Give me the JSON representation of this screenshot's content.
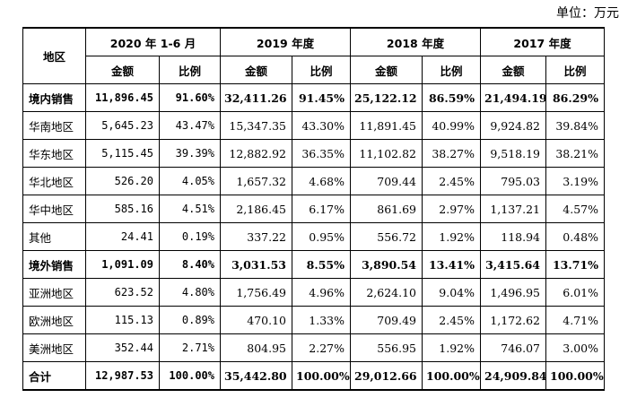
{
  "unit_label": "单位：万元",
  "header": {
    "region": "地区",
    "periods": [
      "2020 年 1-6 月",
      "2019 年度",
      "2018 年度",
      "2017 年度"
    ],
    "amount": "金额",
    "ratio": "比例"
  },
  "rows": [
    {
      "region": "境内销售",
      "bold": true,
      "vals": [
        "11,896.45",
        "91.60%",
        "32,411.26",
        "91.45%",
        "25,122.12",
        "86.59%",
        "21,494.19",
        "86.29%"
      ]
    },
    {
      "region": "华南地区",
      "bold": false,
      "vals": [
        "5,645.23",
        "43.47%",
        "15,347.35",
        "43.30%",
        "11,891.45",
        "40.99%",
        "9,924.82",
        "39.84%"
      ]
    },
    {
      "region": "华东地区",
      "bold": false,
      "vals": [
        "5,115.45",
        "39.39%",
        "12,882.92",
        "36.35%",
        "11,102.82",
        "38.27%",
        "9,518.19",
        "38.21%"
      ]
    },
    {
      "region": "华北地区",
      "bold": false,
      "vals": [
        "526.20",
        "4.05%",
        "1,657.32",
        "4.68%",
        "709.44",
        "2.45%",
        "795.03",
        "3.19%"
      ]
    },
    {
      "region": "华中地区",
      "bold": false,
      "vals": [
        "585.16",
        "4.51%",
        "2,186.45",
        "6.17%",
        "861.69",
        "2.97%",
        "1,137.21",
        "4.57%"
      ]
    },
    {
      "region": "其他",
      "bold": false,
      "vals": [
        "24.41",
        "0.19%",
        "337.22",
        "0.95%",
        "556.72",
        "1.92%",
        "118.94",
        "0.48%"
      ]
    },
    {
      "region": "境外销售",
      "bold": true,
      "vals": [
        "1,091.09",
        "8.40%",
        "3,031.53",
        "8.55%",
        "3,890.54",
        "13.41%",
        "3,415.64",
        "13.71%"
      ]
    },
    {
      "region": "亚洲地区",
      "bold": false,
      "vals": [
        "623.52",
        "4.80%",
        "1,756.49",
        "4.96%",
        "2,624.10",
        "9.04%",
        "1,496.95",
        "6.01%"
      ]
    },
    {
      "region": "欧洲地区",
      "bold": false,
      "vals": [
        "115.13",
        "0.89%",
        "470.10",
        "1.33%",
        "709.49",
        "2.45%",
        "1,172.62",
        "4.71%"
      ]
    },
    {
      "region": "美洲地区",
      "bold": false,
      "vals": [
        "352.44",
        "2.71%",
        "804.95",
        "2.27%",
        "556.95",
        "1.92%",
        "746.07",
        "3.00%"
      ]
    },
    {
      "region": "合计",
      "bold": true,
      "total": true,
      "vals": [
        "12,987.53",
        "100.00%",
        "35,442.80",
        "100.00%",
        "29,012.66",
        "100.00%",
        "24,909.84",
        "100.00%"
      ]
    }
  ]
}
